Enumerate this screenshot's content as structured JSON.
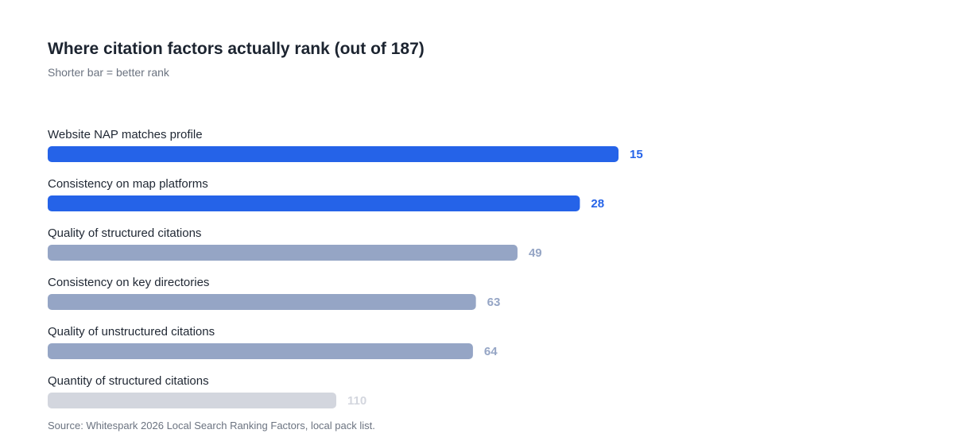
{
  "title": "Where citation factors actually rank (out of 187)",
  "subtitle": "Shorter bar = better rank",
  "source": "Source: Whitespark 2026 Local Search Ranking Factors, local pack list.",
  "colors": {
    "top_rank": "#2563e8",
    "mid_rank": "#95a5c5",
    "low_rank": "#d3d6de"
  },
  "chart_data": {
    "type": "bar",
    "orientation": "horizontal",
    "categories": [
      "Website NAP matches profile",
      "Consistency on map platforms",
      "Quality of structured citations",
      "Consistency on key directories",
      "Quality of unstructured citations",
      "Quantity of structured citations"
    ],
    "values": [
      15,
      28,
      49,
      63,
      64,
      110
    ],
    "bar_color_groups": [
      "top_rank",
      "top_rank",
      "mid_rank",
      "mid_rank",
      "mid_rank",
      "low_rank"
    ],
    "grid": false,
    "legend": "none"
  }
}
